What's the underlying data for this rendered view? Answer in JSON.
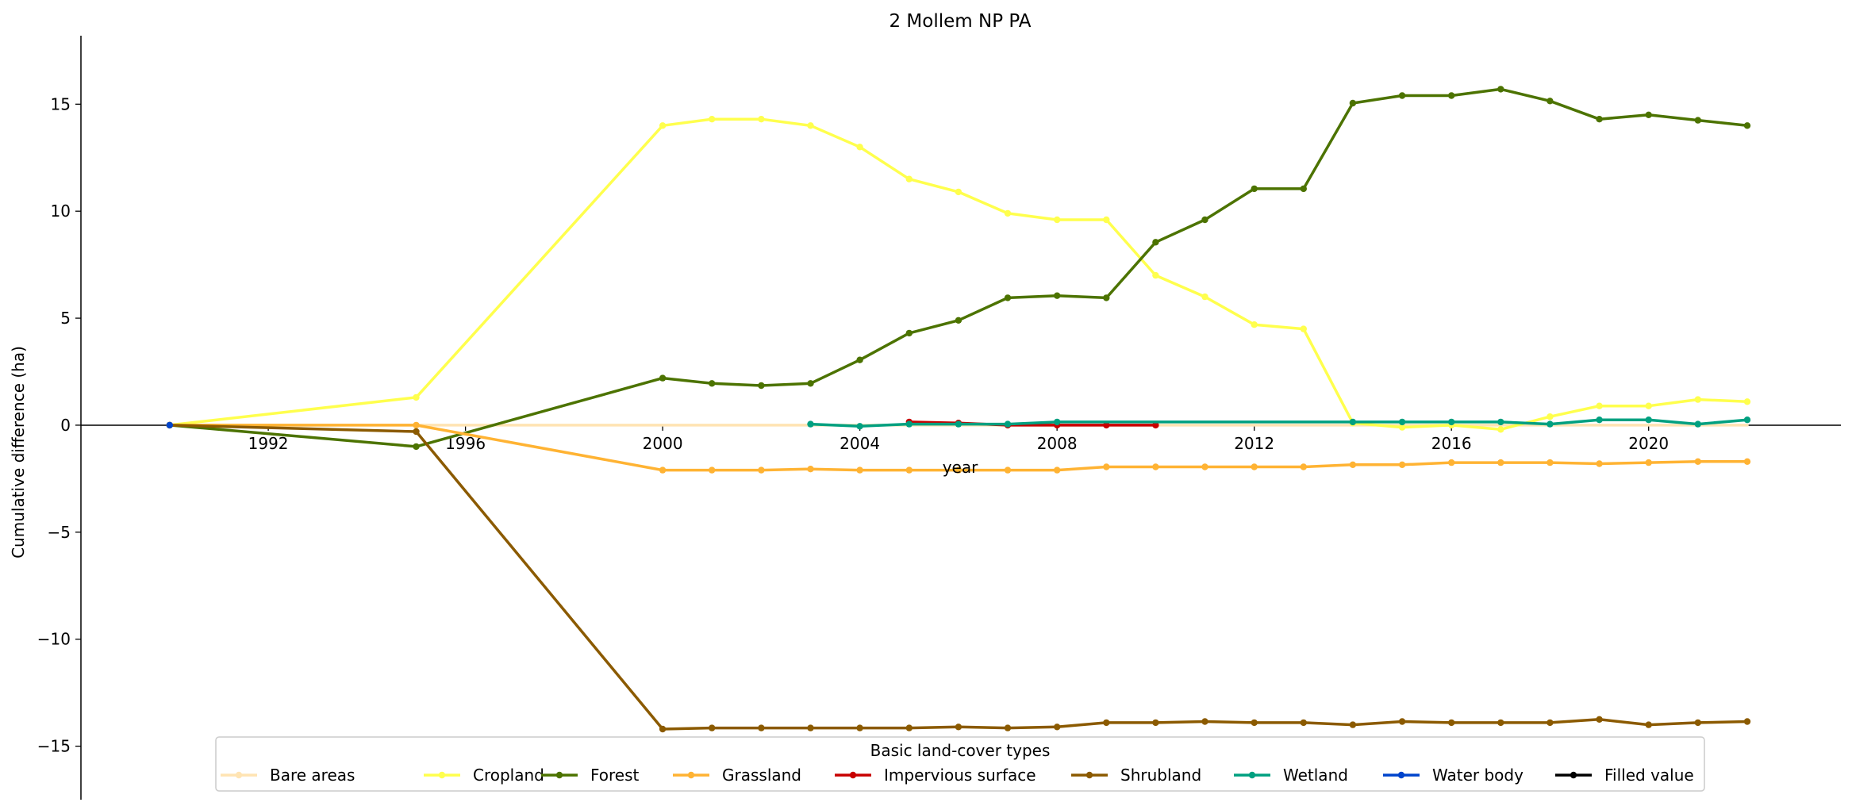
{
  "chart_data": {
    "type": "line",
    "title": "2 Mollem NP PA",
    "xlabel": "year",
    "ylabel": "Cumulative difference (ha)",
    "xlim": [
      1988.2,
      2023.9
    ],
    "ylim": [
      -17.5,
      18.2
    ],
    "xticks": [
      1992,
      1996,
      2000,
      2004,
      2008,
      2012,
      2016,
      2020
    ],
    "yticks": [
      -15,
      -10,
      -5,
      0,
      5,
      10,
      15
    ],
    "ytick_labels": [
      "−15",
      "−10",
      "−5",
      "0",
      "5",
      "10",
      "15"
    ],
    "legend": {
      "title": "Basic land-cover types",
      "placement": "bottom-center",
      "ncol": 9
    },
    "series": [
      {
        "name": "Bare areas",
        "color": "#ffe4b3",
        "markers": false,
        "x": [
          1990,
          1995,
          2000,
          2001,
          2002,
          2003,
          2004,
          2005,
          2006,
          2007,
          2008,
          2009,
          2010,
          2011,
          2012,
          2013,
          2014,
          2015,
          2016,
          2017,
          2018,
          2019,
          2020,
          2021,
          2022
        ],
        "y": [
          0,
          0,
          0,
          0,
          0,
          0,
          0,
          0,
          0,
          0,
          0,
          0,
          0,
          0,
          0,
          0,
          0,
          0,
          0,
          0,
          0,
          0,
          0,
          0,
          0
        ]
      },
      {
        "name": "Cropland",
        "color": "#ffff4d",
        "markers": true,
        "x": [
          1990,
          1995,
          2000,
          2001,
          2002,
          2003,
          2004,
          2005,
          2006,
          2007,
          2008,
          2009,
          2010,
          2011,
          2012,
          2013,
          2014,
          2015,
          2016,
          2017,
          2018,
          2019,
          2020,
          2021,
          2022
        ],
        "y": [
          0,
          1.3,
          14.0,
          14.3,
          14.3,
          14.0,
          13.0,
          11.5,
          10.9,
          9.9,
          9.6,
          9.6,
          7.0,
          6.0,
          4.7,
          4.5,
          0.1,
          -0.1,
          0.0,
          -0.2,
          0.4,
          0.9,
          0.9,
          1.2,
          1.1
        ]
      },
      {
        "name": "Forest",
        "color": "#4c7300",
        "markers": true,
        "x": [
          1990,
          1995,
          2000,
          2001,
          2002,
          2003,
          2004,
          2005,
          2006,
          2007,
          2008,
          2009,
          2010,
          2011,
          2012,
          2013,
          2014,
          2015,
          2016,
          2017,
          2018,
          2019,
          2020,
          2021,
          2022
        ],
        "y": [
          0,
          -1.0,
          2.2,
          1.95,
          1.85,
          1.95,
          3.05,
          4.3,
          4.9,
          5.95,
          6.05,
          5.95,
          8.55,
          9.6,
          11.05,
          11.05,
          15.05,
          15.4,
          15.4,
          15.7,
          15.15,
          14.3,
          14.5,
          14.25,
          14.0
        ]
      },
      {
        "name": "Grassland",
        "color": "#ffb333",
        "markers": true,
        "x": [
          1990,
          1995,
          2000,
          2001,
          2002,
          2003,
          2004,
          2005,
          2006,
          2007,
          2008,
          2009,
          2010,
          2011,
          2012,
          2013,
          2014,
          2015,
          2016,
          2017,
          2018,
          2019,
          2020,
          2021,
          2022
        ],
        "y": [
          0,
          0,
          -2.1,
          -2.1,
          -2.1,
          -2.05,
          -2.1,
          -2.1,
          -2.1,
          -2.1,
          -2.1,
          -1.95,
          -1.95,
          -1.95,
          -1.95,
          -1.95,
          -1.85,
          -1.85,
          -1.75,
          -1.75,
          -1.75,
          -1.8,
          -1.75,
          -1.7,
          -1.7
        ]
      },
      {
        "name": "Impervious surface",
        "color": "#c80000",
        "markers": true,
        "x": [
          2005,
          2006,
          2007,
          2008,
          2009,
          2010
        ],
        "y": [
          0.15,
          0.1,
          0.0,
          0.0,
          0.0,
          0.0
        ]
      },
      {
        "name": "Shrubland",
        "color": "#8b5a00",
        "markers": true,
        "x": [
          1990,
          1995,
          2000,
          2001,
          2002,
          2003,
          2004,
          2005,
          2006,
          2007,
          2008,
          2009,
          2010,
          2011,
          2012,
          2013,
          2014,
          2015,
          2016,
          2017,
          2018,
          2019,
          2020,
          2021,
          2022
        ],
        "y": [
          0,
          -0.3,
          -14.2,
          -14.15,
          -14.15,
          -14.15,
          -14.15,
          -14.15,
          -14.1,
          -14.15,
          -14.1,
          -13.9,
          -13.9,
          -13.85,
          -13.9,
          -13.9,
          -14.0,
          -13.85,
          -13.9,
          -13.9,
          -13.9,
          -13.75,
          -14.0,
          -13.9,
          -13.85
        ]
      },
      {
        "name": "Wetland",
        "color": "#00a080",
        "markers": true,
        "x": [
          2003,
          2004,
          2005,
          2006,
          2007,
          2008,
          2014,
          2015,
          2016,
          2017,
          2018,
          2019,
          2020,
          2021,
          2022
        ],
        "y": [
          0.05,
          -0.05,
          0.05,
          0.05,
          0.05,
          0.15,
          0.15,
          0.15,
          0.15,
          0.15,
          0.05,
          0.25,
          0.25,
          0.05,
          0.25
        ]
      },
      {
        "name": "Water body",
        "color": "#0044cc",
        "markers": true,
        "x": [
          1990
        ],
        "y": [
          0
        ]
      },
      {
        "name": "Filled value",
        "color": "#000000",
        "markers": true,
        "x": [],
        "y": []
      }
    ]
  }
}
